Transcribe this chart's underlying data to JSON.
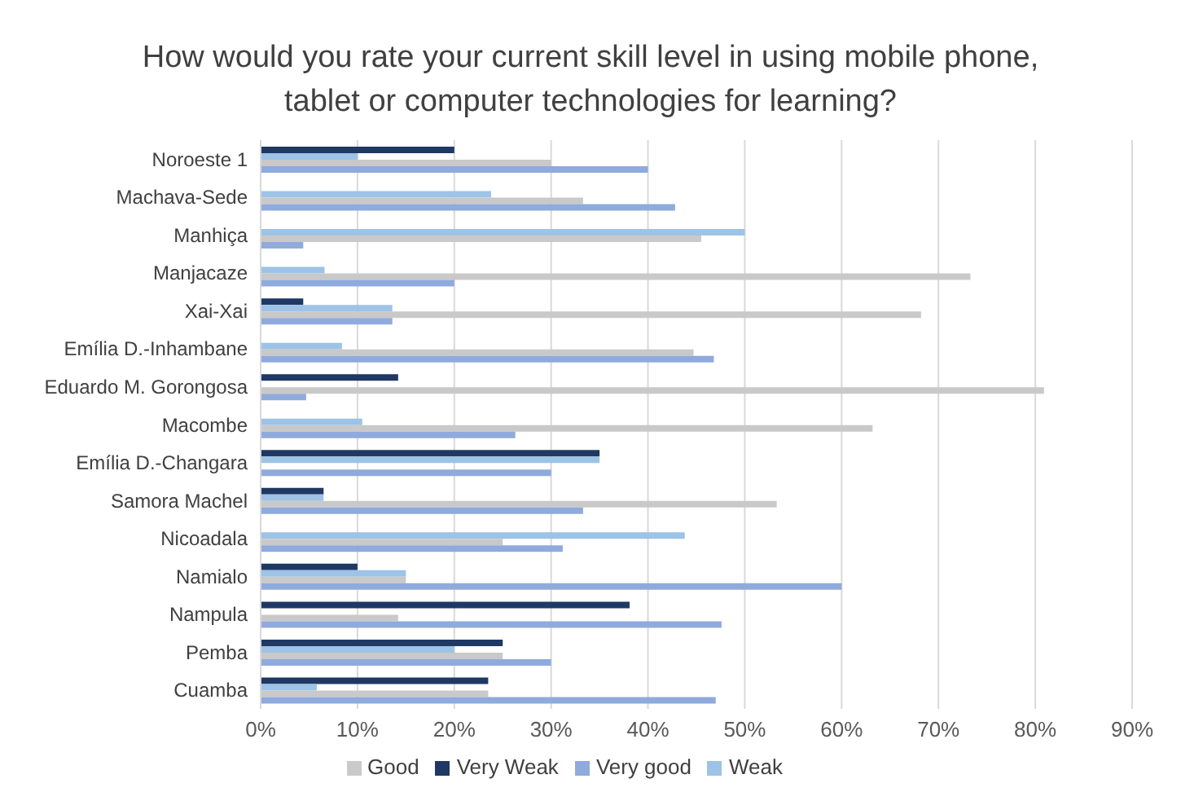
{
  "chart_data": {
    "type": "bar",
    "orientation": "horizontal",
    "title": "How would you rate your current skill level in using mobile phone, tablet or computer technologies for learning?",
    "categories": [
      "Noroeste 1",
      "Machava-Sede",
      "Manhiça",
      "Manjacaze",
      "Xai-Xai",
      "Emília D.-Inhambane",
      "Eduardo M. Gorongosa",
      "Macombe",
      "Emília D.-Changara",
      "Samora Machel",
      "Nicoadala",
      "Namialo",
      "Nampula",
      "Pemba",
      "Cuamba"
    ],
    "series": [
      {
        "name": "Very Weak",
        "color": "#1f3864",
        "values": [
          20,
          0,
          0,
          0,
          4.4,
          0,
          14.2,
          0,
          35,
          6.5,
          0,
          10,
          38.1,
          25,
          23.5
        ]
      },
      {
        "name": "Weak",
        "color": "#9dc3e6",
        "values": [
          10,
          23.8,
          50,
          6.6,
          13.6,
          8.4,
          0,
          10.5,
          35,
          6.5,
          43.8,
          15,
          0,
          20,
          5.8
        ]
      },
      {
        "name": "Good",
        "color": "#c9c9c9",
        "values": [
          30,
          33.3,
          45.5,
          73.3,
          68.2,
          44.7,
          80.9,
          63.2,
          0,
          53.3,
          25,
          15,
          14.2,
          25,
          23.5
        ]
      },
      {
        "name": "Very good",
        "color": "#8faadc",
        "values": [
          40,
          42.8,
          4.4,
          20,
          13.6,
          46.8,
          4.7,
          26.3,
          30,
          33.3,
          31.2,
          60,
          47.6,
          30,
          47
        ]
      }
    ],
    "xlim": [
      0,
      90
    ],
    "xticks": [
      {
        "value": 0,
        "label": "0%"
      },
      {
        "value": 10,
        "label": "10%"
      },
      {
        "value": 20,
        "label": "20%"
      },
      {
        "value": 30,
        "label": "30%"
      },
      {
        "value": 40,
        "label": "40%"
      },
      {
        "value": 50,
        "label": "50%"
      },
      {
        "value": 60,
        "label": "60%"
      },
      {
        "value": 70,
        "label": "70%"
      },
      {
        "value": 80,
        "label": "80%"
      },
      {
        "value": 90,
        "label": "90%"
      }
    ],
    "grid": "x",
    "legend": "bottom"
  }
}
